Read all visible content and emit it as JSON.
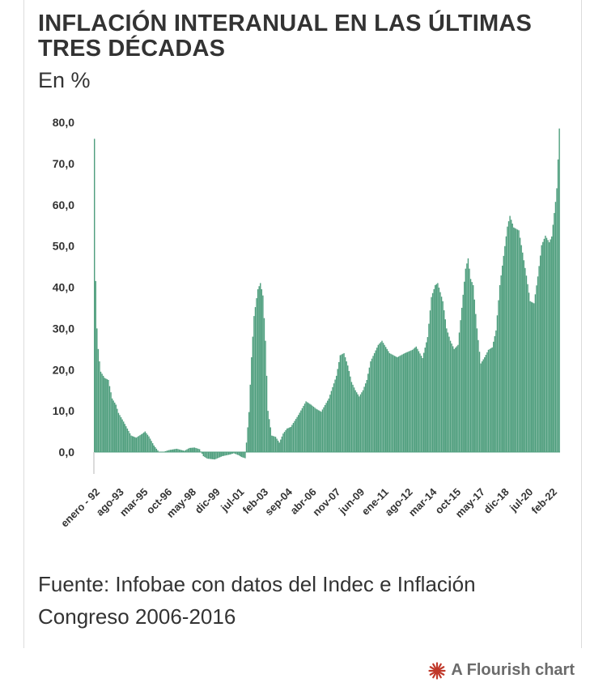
{
  "title": "INFLACIÓN INTERANUAL EN LAS ÚLTIMAS TRES DÉCADAS",
  "subtitle": "En %",
  "source": "Fuente: Infobae con datos del Indec e Inflación Congreso 2006-2016",
  "credit": {
    "label": "A Flourish chart",
    "icon": "flourish-logo-icon",
    "color": "#c0392b"
  },
  "colors": {
    "bar": "#4e9e7d",
    "axis": "#333333",
    "zero": "#cfcfcf"
  },
  "chart_data": {
    "type": "bar",
    "ylim": [
      -3,
      80
    ],
    "yticks": [
      80,
      70,
      60,
      50,
      40,
      30,
      20,
      10,
      0
    ],
    "ytick_labels": [
      "80,0",
      "70,0",
      "60,0",
      "50,0",
      "40,0",
      "30,0",
      "20,0",
      "10,0",
      "0,0"
    ],
    "x_start": "1992-01",
    "xtick_labels": [
      {
        "label": "enero - 92",
        "date": "1992-01"
      },
      {
        "label": "ago-93",
        "date": "1993-08"
      },
      {
        "label": "mar-95",
        "date": "1995-03"
      },
      {
        "label": "oct-96",
        "date": "1996-10"
      },
      {
        "label": "may-98",
        "date": "1998-05"
      },
      {
        "label": "dic-99",
        "date": "1999-12"
      },
      {
        "label": "jul-01",
        "date": "2001-07"
      },
      {
        "label": "feb-03",
        "date": "2003-02"
      },
      {
        "label": "sep-04",
        "date": "2004-09"
      },
      {
        "label": "abr-06",
        "date": "2006-04"
      },
      {
        "label": "nov-07",
        "date": "2007-11"
      },
      {
        "label": "jun-09",
        "date": "2009-06"
      },
      {
        "label": "ene-11",
        "date": "2011-01"
      },
      {
        "label": "ago-12",
        "date": "2012-08"
      },
      {
        "label": "mar-14",
        "date": "2014-03"
      },
      {
        "label": "oct-15",
        "date": "2015-10"
      },
      {
        "label": "may-17",
        "date": "2017-05"
      },
      {
        "label": "dic-18",
        "date": "2018-12"
      },
      {
        "label": "jul-20",
        "date": "2020-07"
      },
      {
        "label": "feb-22",
        "date": "2022-02"
      }
    ],
    "x_end": "2022-08",
    "series_keypoints": [
      [
        "1992-01",
        76.0
      ],
      [
        "1992-02",
        41.5
      ],
      [
        "1992-03",
        30.0
      ],
      [
        "1992-04",
        25.0
      ],
      [
        "1992-05",
        22.0
      ],
      [
        "1992-06",
        19.5
      ],
      [
        "1992-09",
        18.0
      ],
      [
        "1992-12",
        17.5
      ],
      [
        "1993-03",
        13.0
      ],
      [
        "1993-06",
        11.5
      ],
      [
        "1993-08",
        9.5
      ],
      [
        "1993-12",
        7.4
      ],
      [
        "1994-06",
        4.0
      ],
      [
        "1994-10",
        3.5
      ],
      [
        "1995-03",
        4.5
      ],
      [
        "1995-05",
        5.0
      ],
      [
        "1995-08",
        3.8
      ],
      [
        "1995-12",
        1.6
      ],
      [
        "1996-04",
        0.0
      ],
      [
        "1996-08",
        0.1
      ],
      [
        "1996-12",
        0.5
      ],
      [
        "1997-06",
        0.8
      ],
      [
        "1997-12",
        0.3
      ],
      [
        "1998-04",
        1.0
      ],
      [
        "1998-08",
        1.1
      ],
      [
        "1998-12",
        0.7
      ],
      [
        "1999-03",
        -1.0
      ],
      [
        "1999-06",
        -1.6
      ],
      [
        "1999-12",
        -1.8
      ],
      [
        "2000-06",
        -1.0
      ],
      [
        "2000-12",
        -0.6
      ],
      [
        "2001-03",
        -0.3
      ],
      [
        "2001-07",
        -0.8
      ],
      [
        "2001-09",
        -1.2
      ],
      [
        "2001-12",
        -1.5
      ],
      [
        "2002-01",
        2.3
      ],
      [
        "2002-03",
        9.7
      ],
      [
        "2002-05",
        23.0
      ],
      [
        "2002-07",
        33.0
      ],
      [
        "2002-10",
        39.5
      ],
      [
        "2002-12",
        41.0
      ],
      [
        "2003-02",
        38.0
      ],
      [
        "2003-04",
        27.0
      ],
      [
        "2003-06",
        10.0
      ],
      [
        "2003-09",
        4.0
      ],
      [
        "2003-12",
        3.7
      ],
      [
        "2004-03",
        2.3
      ],
      [
        "2004-06",
        4.5
      ],
      [
        "2004-09",
        5.7
      ],
      [
        "2004-12",
        6.1
      ],
      [
        "2005-06",
        9.0
      ],
      [
        "2005-12",
        12.3
      ],
      [
        "2006-04",
        11.5
      ],
      [
        "2006-08",
        10.5
      ],
      [
        "2006-12",
        9.8
      ],
      [
        "2007-06",
        13.0
      ],
      [
        "2007-12",
        18.5
      ],
      [
        "2008-03",
        23.5
      ],
      [
        "2008-06",
        24.0
      ],
      [
        "2008-09",
        21.0
      ],
      [
        "2008-12",
        17.0
      ],
      [
        "2009-03",
        15.0
      ],
      [
        "2009-06",
        13.5
      ],
      [
        "2009-09",
        15.0
      ],
      [
        "2009-12",
        17.5
      ],
      [
        "2010-03",
        22.0
      ],
      [
        "2010-06",
        24.0
      ],
      [
        "2010-09",
        26.0
      ],
      [
        "2010-12",
        27.0
      ],
      [
        "2011-06",
        24.0
      ],
      [
        "2011-12",
        23.0
      ],
      [
        "2012-06",
        24.0
      ],
      [
        "2012-12",
        24.8
      ],
      [
        "2013-03",
        25.6
      ],
      [
        "2013-08",
        22.8
      ],
      [
        "2013-12",
        27.9
      ],
      [
        "2014-03",
        37.6
      ],
      [
        "2014-06",
        40.5
      ],
      [
        "2014-08",
        41.0
      ],
      [
        "2014-12",
        36.6
      ],
      [
        "2015-03",
        30.0
      ],
      [
        "2015-06",
        27.0
      ],
      [
        "2015-09",
        25.0
      ],
      [
        "2015-12",
        26.0
      ],
      [
        "2016-03",
        35.0
      ],
      [
        "2016-06",
        44.5
      ],
      [
        "2016-08",
        47.0
      ],
      [
        "2016-10",
        42.0
      ],
      [
        "2016-12",
        40.5
      ],
      [
        "2017-03",
        30.0
      ],
      [
        "2017-06",
        21.5
      ],
      [
        "2017-09",
        23.0
      ],
      [
        "2017-12",
        24.8
      ],
      [
        "2018-03",
        25.4
      ],
      [
        "2018-06",
        29.5
      ],
      [
        "2018-09",
        40.5
      ],
      [
        "2018-12",
        47.6
      ],
      [
        "2019-03",
        54.7
      ],
      [
        "2019-05",
        57.3
      ],
      [
        "2019-08",
        54.5
      ],
      [
        "2019-12",
        53.8
      ],
      [
        "2020-03",
        48.4
      ],
      [
        "2020-06",
        42.8
      ],
      [
        "2020-09",
        36.6
      ],
      [
        "2020-12",
        36.1
      ],
      [
        "2021-03",
        42.6
      ],
      [
        "2021-06",
        50.2
      ],
      [
        "2021-09",
        52.5
      ],
      [
        "2021-12",
        50.9
      ],
      [
        "2022-02",
        52.3
      ],
      [
        "2022-04",
        58.0
      ],
      [
        "2022-05",
        60.7
      ],
      [
        "2022-06",
        64.0
      ],
      [
        "2022-07",
        71.0
      ],
      [
        "2022-08",
        78.5
      ]
    ]
  }
}
